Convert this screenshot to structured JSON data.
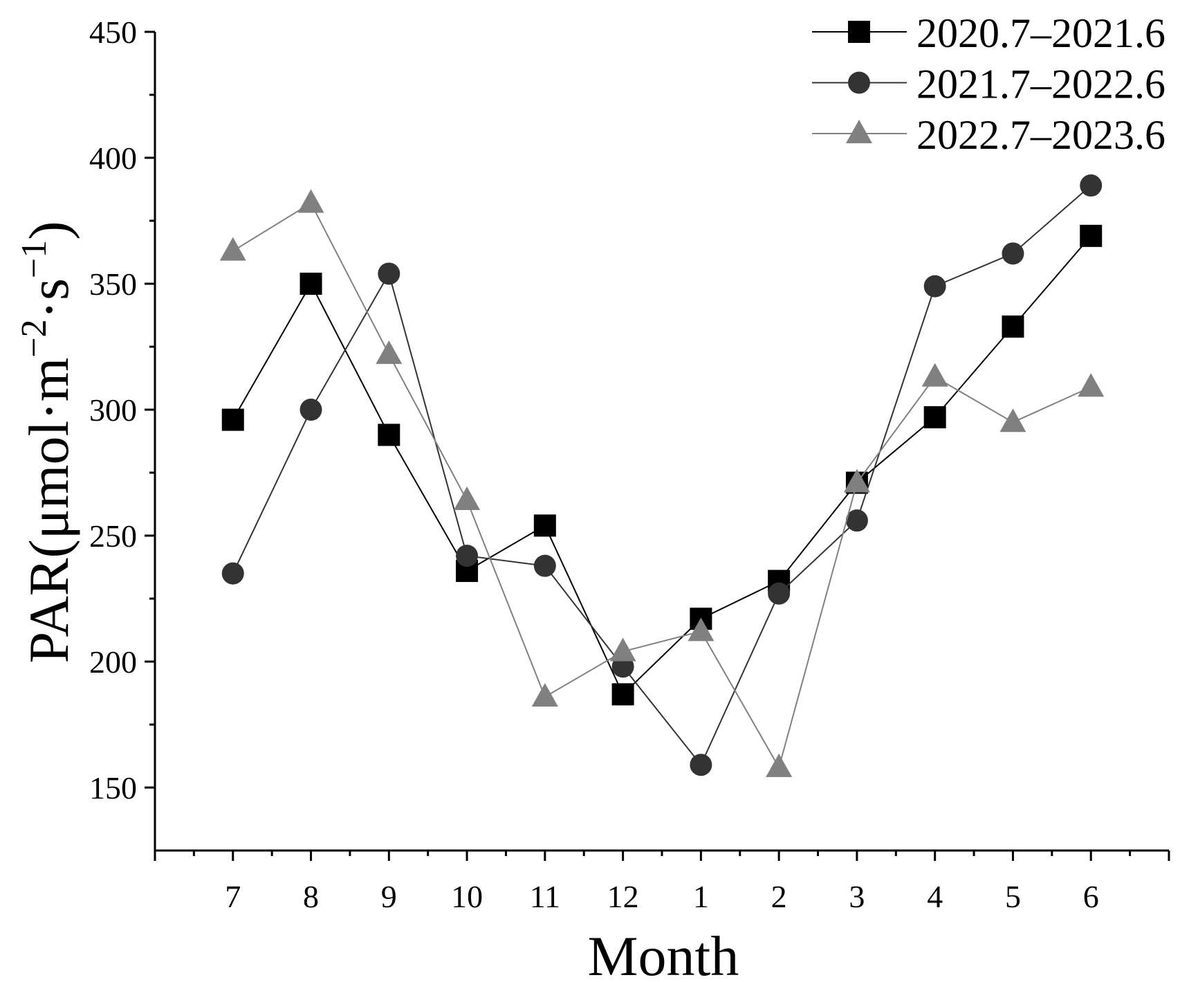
{
  "chart_data": {
    "type": "line",
    "title": "",
    "xlabel": "Month",
    "ylabel": {
      "main": "PAR(μmol·m",
      "sup1": "−2",
      "mid": "·s",
      "sup2": "−1",
      "end": ")"
    },
    "categories": [
      "7",
      "8",
      "9",
      "10",
      "11",
      "12",
      "1",
      "2",
      "3",
      "4",
      "5",
      "6"
    ],
    "ylim": [
      125,
      450
    ],
    "yticks": [
      150,
      200,
      250,
      300,
      350,
      400,
      450
    ],
    "grid": false,
    "legend": "top-right",
    "series": [
      {
        "name": "2020.7–2021.6",
        "marker": "square",
        "color": "#000000",
        "values": [
          296,
          350,
          290,
          236,
          254,
          187,
          217,
          232,
          271,
          297,
          333,
          369
        ]
      },
      {
        "name": "2021.7–2022.6",
        "marker": "circle",
        "color": "#333333",
        "values": [
          235,
          300,
          354,
          242,
          238,
          198,
          159,
          227,
          256,
          349,
          362,
          389
        ]
      },
      {
        "name": "2022.7–2023.6",
        "marker": "triangle",
        "color": "#808080",
        "values": [
          363,
          382,
          322,
          264,
          186,
          204,
          212,
          158,
          271,
          313,
          295,
          309
        ]
      }
    ]
  }
}
